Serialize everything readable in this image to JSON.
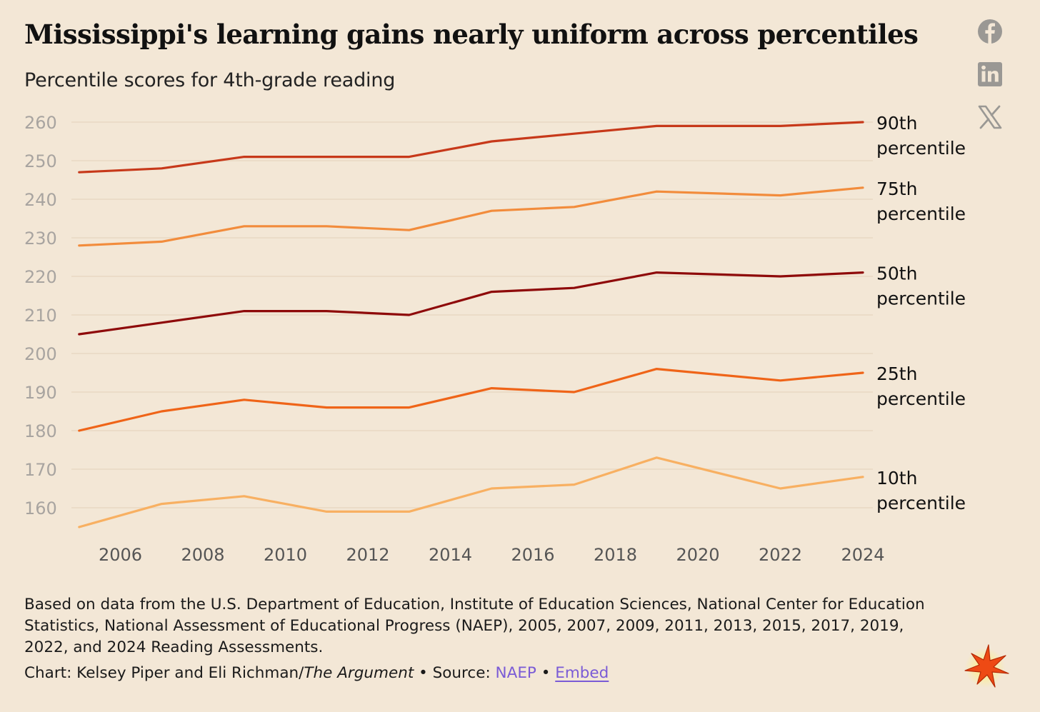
{
  "title": "Mississippi's learning gains nearly uniform across percentiles",
  "subtitle": "Percentile scores for 4th-grade reading",
  "share": {
    "facebook_icon": "facebook-icon",
    "linkedin_icon": "linkedin-icon",
    "x_icon": "x-icon"
  },
  "chart_data": {
    "type": "line",
    "title": "Mississippi's learning gains nearly uniform across percentiles",
    "subtitle": "Percentile scores for 4th-grade reading",
    "xlabel": "",
    "ylabel": "",
    "x": [
      2005,
      2007,
      2009,
      2011,
      2013,
      2015,
      2017,
      2019,
      2022,
      2024
    ],
    "x_ticks": [
      2006,
      2008,
      2010,
      2012,
      2014,
      2016,
      2018,
      2020,
      2022,
      2024
    ],
    "x_tick_labels": [
      "2006",
      "2008",
      "2010",
      "2012",
      "2014",
      "2016",
      "2018",
      "2020",
      "2022",
      "2024"
    ],
    "xlim": [
      2004,
      2024
    ],
    "y_ticks": [
      160,
      170,
      180,
      190,
      200,
      210,
      220,
      230,
      240,
      250,
      260
    ],
    "y_tick_labels": [
      "160",
      "170",
      "180",
      "190",
      "200",
      "210",
      "220",
      "230",
      "240",
      "250",
      "260"
    ],
    "ylim": [
      153,
      261
    ],
    "grid": true,
    "series": [
      {
        "name": "90th percentile",
        "label_line1": "90th",
        "label_line2": "percentile",
        "color": "#c7391a",
        "values": [
          247,
          248,
          251,
          251,
          251,
          255,
          257,
          259,
          259,
          260
        ]
      },
      {
        "name": "75th percentile",
        "label_line1": "75th",
        "label_line2": "percentile",
        "color": "#f28c3c",
        "values": [
          228,
          229,
          233,
          233,
          232,
          237,
          238,
          242,
          241,
          243
        ]
      },
      {
        "name": "50th percentile",
        "label_line1": "50th",
        "label_line2": "percentile",
        "color": "#8e0a0a",
        "values": [
          205,
          208,
          211,
          211,
          210,
          216,
          217,
          221,
          220,
          221
        ]
      },
      {
        "name": "25th percentile",
        "label_line1": "25th",
        "label_line2": "percentile",
        "color": "#ef6418",
        "values": [
          180,
          185,
          188,
          186,
          186,
          191,
          190,
          196,
          193,
          195
        ]
      },
      {
        "name": "10th percentile",
        "label_line1": "10th",
        "label_line2": "percentile",
        "color": "#f8b062",
        "values": [
          155,
          161,
          163,
          159,
          159,
          165,
          166,
          173,
          165,
          168
        ]
      }
    ]
  },
  "footer": {
    "note": "Based on data from the U.S. Department of Education, Institute of Education Sciences, National Center for Education Statistics, National Assessment of Educational Progress (NAEP), 2005, 2007, 2009, 2011, 2013, 2015, 2017, 2019, 2022, and 2024 Reading Assessments.",
    "credit_prefix": "Chart: Kelsey Piper and Eli Richman/",
    "publication": "The Argument",
    "source_prefix": " • Source: ",
    "source_link": "NAEP",
    "separator": " • ",
    "embed_link": "Embed"
  },
  "logo_icon": "starburst-logo-icon"
}
